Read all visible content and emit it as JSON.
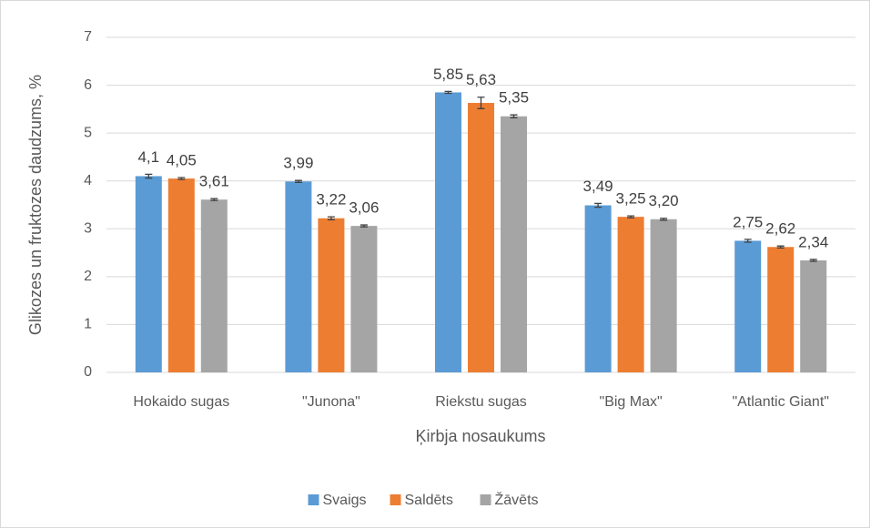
{
  "chart_data": {
    "type": "bar",
    "y_label": "Glikozes un fruktozes daudzums, %",
    "x_label": "Ķirbja nosaukums",
    "categories": [
      "Hokaido sugas",
      "\"Junona\"",
      "Riekstu sugas",
      "\"Big Max\"",
      "\"Atlantic Giant\""
    ],
    "series": [
      {
        "name": "Svaigs",
        "color": "#5b9bd5",
        "values": [
          4.1,
          3.99,
          5.85,
          3.49,
          2.75
        ],
        "value_labels": [
          "4,1",
          "3,99",
          "5,85",
          "3,49",
          "2,75"
        ],
        "errors": [
          0.04,
          0.02,
          0.02,
          0.04,
          0.03
        ]
      },
      {
        "name": "Saldēts",
        "color": "#ed7d31",
        "values": [
          4.05,
          3.22,
          5.63,
          3.25,
          2.62
        ],
        "value_labels": [
          "4,05",
          "3,22",
          "5,63",
          "3,25",
          "2,62"
        ],
        "errors": [
          0.02,
          0.03,
          0.12,
          0.02,
          0.02
        ]
      },
      {
        "name": "Žāvēts",
        "color": "#a5a5a5",
        "values": [
          3.61,
          3.06,
          5.35,
          3.2,
          2.34
        ],
        "value_labels": [
          "3,61",
          "3,06",
          "5,35",
          "3,20",
          "2,34"
        ],
        "errors": [
          0.02,
          0.02,
          0.03,
          0.02,
          0.02
        ]
      }
    ],
    "ylim": [
      0,
      7
    ],
    "yticks": [
      0,
      1,
      2,
      3,
      4,
      5,
      6,
      7
    ],
    "grid": true,
    "legend": "bottom"
  }
}
